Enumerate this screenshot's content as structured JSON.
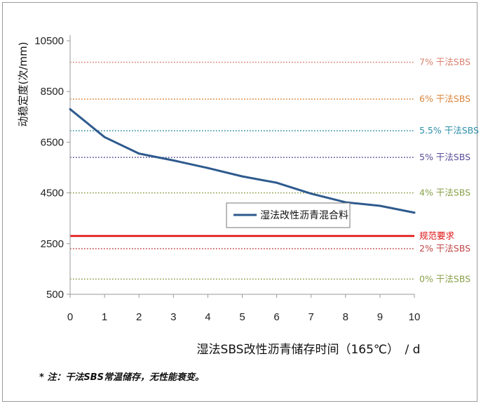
{
  "chart_data": {
    "type": "line",
    "xlabel": "湿法SBS改性沥青储存时间（165℃）　/ d",
    "ylabel": "动稳定度(次/mm)",
    "x": [
      0,
      1,
      2,
      3,
      4,
      5,
      6,
      7,
      8,
      9,
      10
    ],
    "x_ticks": [
      "0",
      "1",
      "2",
      "3",
      "4",
      "5",
      "6",
      "7",
      "8",
      "9",
      "10"
    ],
    "y_ticks": [
      "10500",
      "8500",
      "6500",
      "4500",
      "2500",
      "500"
    ],
    "xlim": [
      0,
      10
    ],
    "ylim": [
      500,
      10500
    ],
    "grid": false,
    "legend_position": "inside, center-right",
    "series": [
      {
        "name": "湿法改性沥青混合料",
        "color": "#2e5a8e",
        "values": [
          7800,
          6700,
          6050,
          5780,
          5480,
          5150,
          4900,
          4470,
          4130,
          3990,
          3720
        ]
      }
    ],
    "reference_lines": [
      {
        "label": "7% 干法SBS",
        "value": 9650,
        "color": "#d9826f",
        "style": "dotted"
      },
      {
        "label": "6% 干法SBS",
        "value": 8200,
        "color": "#d9843a",
        "style": "dotted"
      },
      {
        "label": "5.5% 干法SBS",
        "value": 6950,
        "color": "#2e8fa8",
        "style": "dotted"
      },
      {
        "label": "5% 干法SBS",
        "value": 5900,
        "color": "#5a4e9a",
        "style": "dotted"
      },
      {
        "label": "4% 干法SBS",
        "value": 4500,
        "color": "#8aa04a",
        "style": "dotted"
      },
      {
        "label": "规范要求",
        "value": 2800,
        "color": "#e01010",
        "style": "solid"
      },
      {
        "label": "2% 干法SBS",
        "value": 2300,
        "color": "#c04848",
        "style": "dotted"
      },
      {
        "label": "0% 干法SBS",
        "value": 1100,
        "color": "#8aa04a",
        "style": "dotted"
      }
    ],
    "note": "* 注：干法SBS常温储存，无性能衰变。"
  }
}
